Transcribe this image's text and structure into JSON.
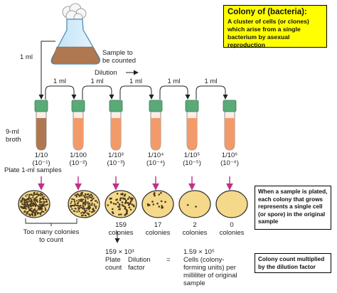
{
  "definition": {
    "title": "Colony of (bacteria):",
    "text": "A cluster of cells (or clones) which arise from a single bacterium by asexual reproduction"
  },
  "flask": {
    "label_line1": "Sample to",
    "label_line2": "be counted",
    "transfer_volume": "1 ml"
  },
  "dilution": {
    "label": "Dilution",
    "transfer_volume": "1 ml",
    "broth_line1": "9-ml",
    "broth_line2": "broth"
  },
  "tubes": [
    {
      "fraction": "1/10",
      "exponent": "(10⁻¹)",
      "fill": "#b07850"
    },
    {
      "fraction": "1/100",
      "exponent": "(10⁻²)",
      "fill": "#f39a6a"
    },
    {
      "fraction": "1/10³",
      "exponent": "(10⁻³)",
      "fill": "#f39a6a"
    },
    {
      "fraction": "1/10⁴",
      "exponent": "(10⁻⁴)",
      "fill": "#f39a6a"
    },
    {
      "fraction": "1/10⁵",
      "exponent": "(10⁻⁵)",
      "fill": "#f39a6a"
    },
    {
      "fraction": "1/10⁶",
      "exponent": "(10⁻⁶)",
      "fill": "#f39a6a"
    }
  ],
  "plating": {
    "label": "Plate 1-ml samples"
  },
  "plates": [
    {
      "count_line1": "",
      "count_line2": ""
    },
    {
      "count_line1": "",
      "count_line2": ""
    },
    {
      "count_line1": "159",
      "count_line2": "colonies"
    },
    {
      "count_line1": "17",
      "count_line2": "colonies"
    },
    {
      "count_line1": "2",
      "count_line2": "colonies"
    },
    {
      "count_line1": "0",
      "count_line2": "colonies"
    }
  ],
  "too_many": {
    "line1": "Too many colonies",
    "line2": "to count"
  },
  "calculation": {
    "left_value": "159 × 10³",
    "plate_count": "Plate",
    "plate_count2": "count",
    "dilution_factor": "Dilution",
    "dilution_factor2": "factor",
    "equals": "=",
    "result_value": "1.59 × 10⁵",
    "result_line1": "Cells (colony-",
    "result_line2": "forming units) per",
    "result_line3": "milliliter of original",
    "result_line4": "sample"
  },
  "notes": {
    "plate_note": "When a sample is plated, each colony that grows represents a single cell (or spore) in the original sample",
    "multiply_note": "Colony count multiplied by the dilution factor"
  },
  "colors": {
    "tube_cap": "#5aaa78",
    "broth": "#f39a6a",
    "sample": "#b07850",
    "plate_fill": "#f5d98a",
    "arrow_pink": "#c0308a"
  }
}
